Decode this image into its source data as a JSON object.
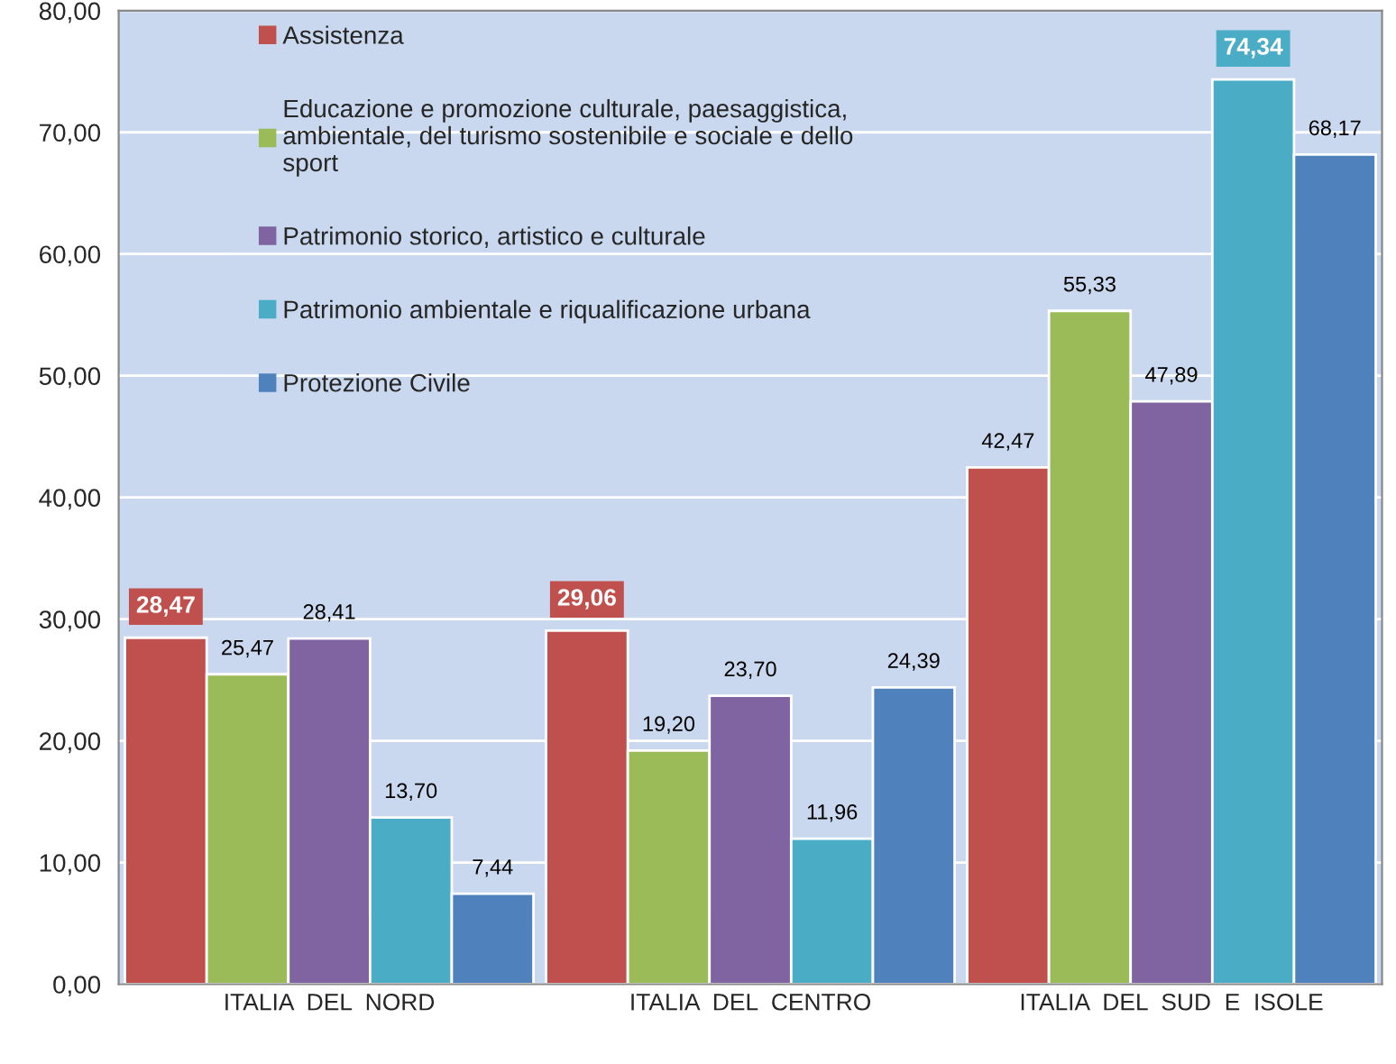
{
  "chart_data": {
    "type": "bar",
    "categories": [
      "ITALIA  DEL  NORD",
      "ITALIA  DEL  CENTRO",
      "ITALIA  DEL  SUD  E  ISOLE"
    ],
    "series": [
      {
        "name": "Assistenza",
        "color": "#c0504d",
        "values": [
          28.47,
          29.06,
          42.47
        ],
        "value_labels": [
          "28,47",
          "29,06",
          "42,47"
        ]
      },
      {
        "name": "Educazione e promozione culturale, paesaggistica, ambientale, del turismo sostenibile e sociale e dello sport",
        "color": "#9bbb59",
        "values": [
          25.47,
          19.2,
          55.33
        ],
        "value_labels": [
          "25,47",
          "19,20",
          "55,33"
        ]
      },
      {
        "name": "Patrimonio storico, artistico e culturale",
        "color": "#8064a2",
        "values": [
          28.41,
          23.7,
          47.89
        ],
        "value_labels": [
          "28,41",
          "23,70",
          "47,89"
        ]
      },
      {
        "name": "Patrimonio ambientale e riqualificazione urbana",
        "color": "#4bacc6",
        "values": [
          13.7,
          11.96,
          74.34
        ],
        "value_labels": [
          "13,70",
          "11,96",
          "74,34"
        ]
      },
      {
        "name": "Protezione Civile",
        "color": "#4f81bd",
        "values": [
          7.44,
          24.39,
          68.17
        ],
        "value_labels": [
          "7,44",
          "24,39",
          "68,17"
        ]
      }
    ],
    "ylim": [
      0,
      80
    ],
    "yticks": [
      {
        "value": 0,
        "label": "0,00"
      },
      {
        "value": 10,
        "label": "10,00"
      },
      {
        "value": 20,
        "label": "20,00"
      },
      {
        "value": 30,
        "label": "30,00"
      },
      {
        "value": 40,
        "label": "40,00"
      },
      {
        "value": 50,
        "label": "50,00"
      },
      {
        "value": 60,
        "label": "60,00"
      },
      {
        "value": 70,
        "label": "70,00"
      },
      {
        "value": 80,
        "label": "80,00"
      }
    ],
    "grid": "y",
    "legend": "top left"
  }
}
